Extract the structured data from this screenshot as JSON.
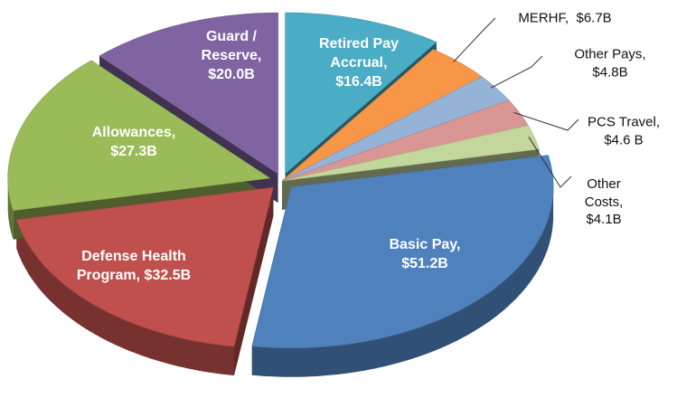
{
  "chart_data": {
    "type": "pie3d",
    "labels": [
      "Retired Pay Accrual, $16.4B",
      "MERHF,  $6.7B",
      "Other Pays, $4.8B",
      "PCS Travel, $4.6 B",
      "Other Costs, $4.1B",
      "Basic Pay, $51.2B",
      "Defense Health Program, $32.5B",
      "Allowances, $27.3B",
      "Guard / Reserve, $20.0B"
    ],
    "values": [
      16.4,
      6.7,
      4.8,
      4.6,
      4.1,
      51.2,
      32.5,
      27.3,
      20.0
    ],
    "colors": [
      "#4bacc6",
      "#f79646",
      "#95b3d7",
      "#d99694",
      "#c3d69b",
      "#4f81bd",
      "#c0504d",
      "#9bbb59",
      "#8064a2"
    ]
  }
}
